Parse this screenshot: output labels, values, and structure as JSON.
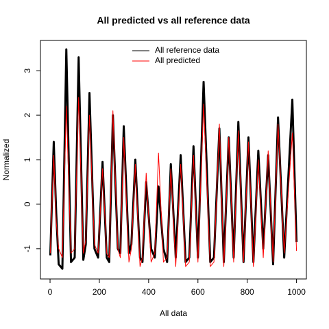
{
  "chart_data": {
    "type": "line",
    "title": "All predicted vs all reference data",
    "xlabel": "All data",
    "ylabel": "Normalized",
    "xlim": [
      -39,
      1040
    ],
    "ylim": [
      -1.68,
      3.68
    ],
    "xticks": [
      0,
      200,
      400,
      600,
      800,
      1000
    ],
    "yticks": [
      -1,
      0,
      1,
      2,
      3
    ],
    "legend": "top",
    "x": [
      1,
      15,
      25,
      35,
      50,
      66,
      85,
      100,
      116,
      135,
      145,
      160,
      180,
      195,
      213,
      230,
      240,
      255,
      275,
      285,
      299,
      320,
      330,
      346,
      365,
      375,
      390,
      410,
      425,
      440,
      460,
      475,
      490,
      510,
      530,
      550,
      565,
      582,
      595,
      600,
      623,
      650,
      665,
      687,
      705,
      725,
      745,
      764,
      785,
      805,
      825,
      845,
      865,
      885,
      905,
      925,
      950,
      983,
      1000
    ],
    "series": [
      {
        "name": "All reference data",
        "color": "#000000",
        "width": 3,
        "values": [
          -1.15,
          1.4,
          -0.2,
          -1.35,
          -1.45,
          3.48,
          -1.3,
          -1.2,
          3.3,
          -1.25,
          -0.9,
          2.5,
          -1.0,
          -1.2,
          0.95,
          -1.2,
          -1.3,
          2.0,
          -1.0,
          -1.1,
          1.75,
          -1.1,
          -0.9,
          1.0,
          -1.2,
          -1.3,
          0.5,
          -1.0,
          -1.2,
          0.4,
          -1.0,
          -1.3,
          0.9,
          -1.2,
          1.1,
          -1.3,
          -1.2,
          1.3,
          -0.5,
          -1.2,
          2.75,
          -1.3,
          -1.2,
          1.7,
          -1.3,
          1.5,
          -1.2,
          1.85,
          -1.3,
          1.5,
          -1.3,
          1.2,
          -1.0,
          1.1,
          -1.35,
          1.95,
          -1.2,
          2.35,
          -0.85
        ]
      },
      {
        "name": "All predicted",
        "color": "#ff0000",
        "width": 1,
        "values": [
          -1.1,
          1.1,
          -0.4,
          -1.0,
          -1.2,
          2.2,
          -1.1,
          -1.0,
          2.4,
          -1.1,
          -0.8,
          2.0,
          -0.9,
          -1.1,
          0.8,
          -1.1,
          -1.2,
          2.1,
          -1.0,
          -1.2,
          1.5,
          -1.3,
          -1.0,
          0.9,
          -1.4,
          -1.2,
          0.7,
          -1.3,
          -1.1,
          1.15,
          -1.3,
          -1.2,
          0.8,
          -1.4,
          0.9,
          -1.4,
          -1.3,
          1.1,
          -0.6,
          -1.3,
          2.25,
          -1.4,
          -1.3,
          1.8,
          -1.4,
          1.5,
          -1.3,
          1.65,
          -1.3,
          1.4,
          -1.4,
          1.0,
          -1.2,
          1.2,
          -1.3,
          1.8,
          -1.1,
          1.6,
          -1.05
        ]
      }
    ]
  }
}
